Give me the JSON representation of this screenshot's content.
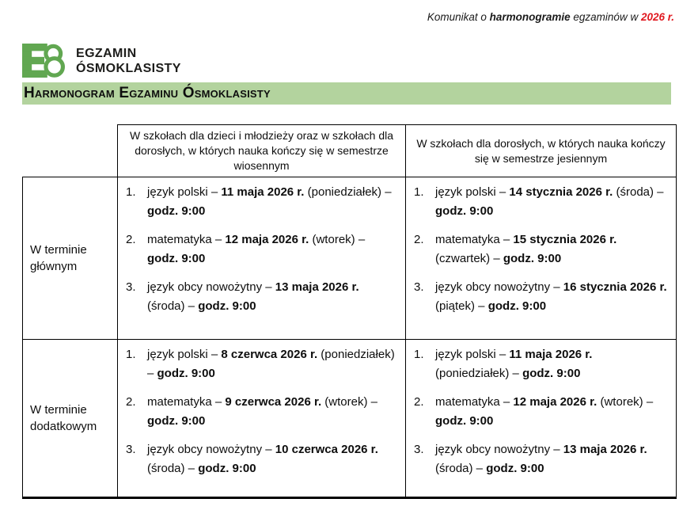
{
  "note": {
    "prefix": "Komunikat o ",
    "bold_word": "harmonogramie",
    "middle": " egzaminów w ",
    "year": "2026 r."
  },
  "logo": {
    "mark": "E8",
    "line1": "EGZAMIN",
    "line2": "ÓSMOKLASISTY"
  },
  "banner": {
    "title": "Harmonogram Egzaminu Ósmoklasisty"
  },
  "colors": {
    "banner_bg": "#b3d39e",
    "logo_green": "#61a751",
    "accent_red": "#e0181f"
  },
  "table": {
    "col_headers": [
      "W szkołach dla dzieci i młodzieży oraz w szkołach dla dorosłych, w których nauka kończy się w semestrze wiosennym",
      "W szkołach dla dorosłych, w których nauka kończy się w semestrze jesiennym"
    ],
    "rows": [
      {
        "label": "W terminie głównym",
        "cells": [
          {
            "items": [
              [
                {
                  "t": "język polski – "
                },
                {
                  "t": "11 maja 2026 r.",
                  "b": true
                },
                {
                  "t": " (poniedziałek) – "
                },
                {
                  "t": "godz. 9:00",
                  "b": true
                }
              ],
              [
                {
                  "t": "matematyka – "
                },
                {
                  "t": "12 maja 2026 r.",
                  "b": true
                },
                {
                  "t": " (wtorek) – "
                },
                {
                  "t": "godz. 9:00",
                  "b": true
                }
              ],
              [
                {
                  "t": "język obcy nowożytny – "
                },
                {
                  "t": "13 maja 2026 r.",
                  "b": true
                },
                {
                  "t": " (środa) – "
                },
                {
                  "t": "godz. 9:00",
                  "b": true
                }
              ]
            ]
          },
          {
            "items": [
              [
                {
                  "t": "język polski – "
                },
                {
                  "t": "14 stycznia 2026 r.",
                  "b": true
                },
                {
                  "t": " (środa) – "
                },
                {
                  "t": "godz. 9:00",
                  "b": true
                }
              ],
              [
                {
                  "t": "matematyka – "
                },
                {
                  "t": "15 stycznia 2026 r.",
                  "b": true
                },
                {
                  "t": " (czwartek) – "
                },
                {
                  "t": "godz. 9:00",
                  "b": true
                }
              ],
              [
                {
                  "t": "język obcy nowożytny – "
                },
                {
                  "t": "16 stycznia 2026 r.",
                  "b": true
                },
                {
                  "t": " (piątek) – "
                },
                {
                  "t": "godz. 9:00",
                  "b": true
                }
              ]
            ]
          }
        ]
      },
      {
        "label": "W terminie dodatkowym",
        "cells": [
          {
            "items": [
              [
                {
                  "t": "język polski – "
                },
                {
                  "t": "8 czerwca 2026 r.",
                  "b": true
                },
                {
                  "t": " (poniedziałek) – "
                },
                {
                  "t": "godz. 9:00",
                  "b": true
                }
              ],
              [
                {
                  "t": "matematyka – "
                },
                {
                  "t": "9 czerwca 2026 r.",
                  "b": true
                },
                {
                  "t": " (wtorek) – "
                },
                {
                  "t": "godz. 9:00",
                  "b": true
                }
              ],
              [
                {
                  "t": "język obcy nowożytny – "
                },
                {
                  "t": "10 czerwca 2026 r.",
                  "b": true
                },
                {
                  "t": " (środa) – "
                },
                {
                  "t": "godz. 9:00",
                  "b": true
                }
              ]
            ]
          },
          {
            "items": [
              [
                {
                  "t": "język polski – "
                },
                {
                  "t": "11 maja 2026 r.",
                  "b": true
                },
                {
                  "t": " (poniedziałek) – "
                },
                {
                  "t": "godz. 9:00",
                  "b": true
                }
              ],
              [
                {
                  "t": "matematyka – "
                },
                {
                  "t": "12 maja 2026 r.",
                  "b": true
                },
                {
                  "t": " (wtorek) – "
                },
                {
                  "t": "godz. 9:00",
                  "b": true
                }
              ],
              [
                {
                  "t": "język obcy nowożytny – "
                },
                {
                  "t": "13 maja 2026 r.",
                  "b": true
                },
                {
                  "t": " (środa) – "
                },
                {
                  "t": "godz. 9:00",
                  "b": true
                }
              ]
            ]
          }
        ]
      }
    ]
  }
}
